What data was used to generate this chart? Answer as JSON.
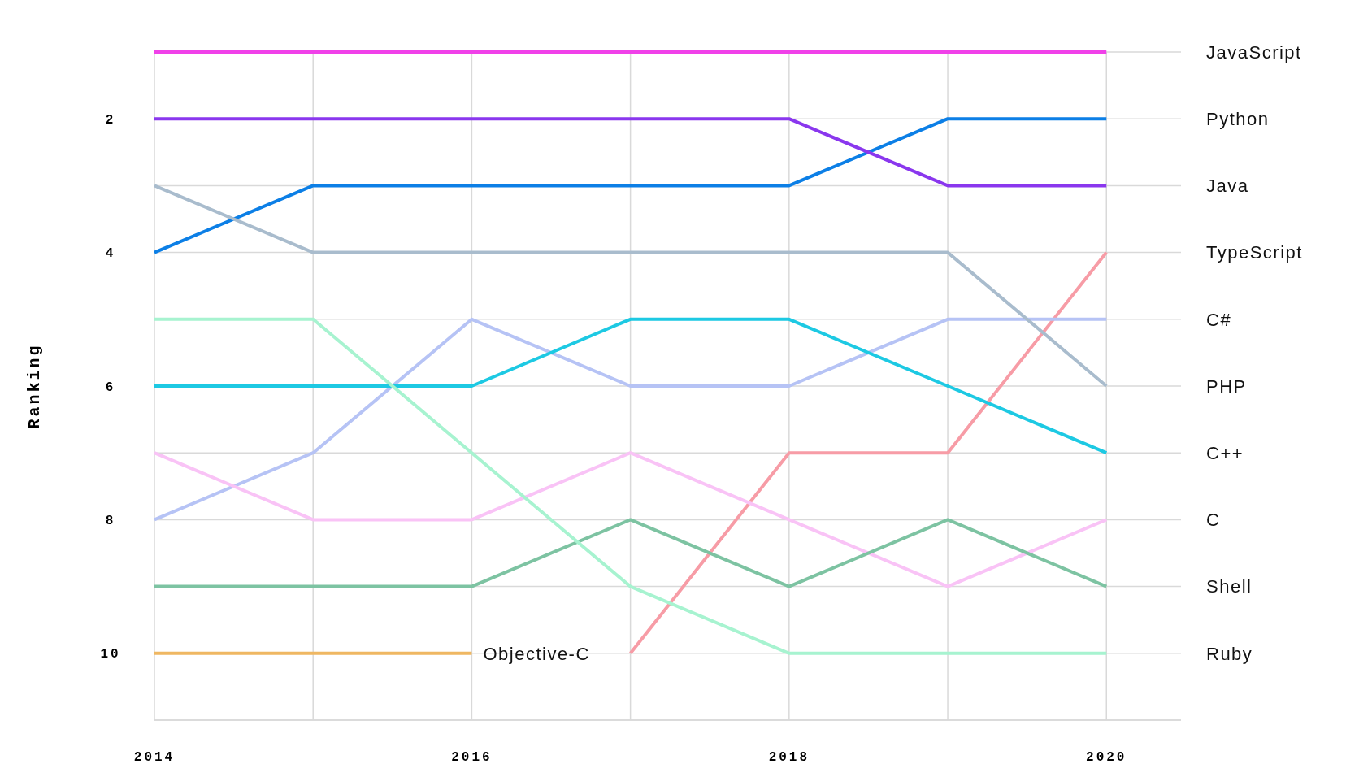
{
  "chart_data": {
    "type": "line",
    "ylabel": "Ranking",
    "x": [
      2014,
      2015,
      2016,
      2017,
      2018,
      2019,
      2020
    ],
    "xlim": [
      2014,
      2020.47
    ],
    "xticks": [
      2014,
      {
        "value": 2015,
        "label": null
      },
      2016,
      {
        "value": 2017,
        "label": null
      },
      2018,
      {
        "value": 2019,
        "label": null
      },
      2020
    ],
    "ylim": [
      11,
      1
    ],
    "yticks": [
      {
        "value": 1,
        "label": null
      },
      2,
      {
        "value": 3,
        "label": null
      },
      4,
      {
        "value": 5,
        "label": null
      },
      6,
      {
        "value": 7,
        "label": null
      },
      8,
      {
        "value": 9,
        "label": null
      },
      10,
      {
        "value": 11,
        "label": null
      }
    ],
    "grid": true,
    "marker": "none",
    "line_style": "solid",
    "series": [
      {
        "name": "JavaScript",
        "color": "#f041e9",
        "values": [
          1,
          1,
          1,
          1,
          1,
          1,
          1
        ]
      },
      {
        "name": "Python",
        "color": "#0c7fe6",
        "values": [
          4,
          3,
          3,
          3,
          3,
          2,
          2
        ]
      },
      {
        "name": "Java",
        "color": "#8a37ee",
        "values": [
          2,
          2,
          2,
          2,
          2,
          3,
          3
        ]
      },
      {
        "name": "TypeScript",
        "color": "#f79ca6",
        "values": [
          null,
          null,
          null,
          10,
          7,
          7,
          4
        ]
      },
      {
        "name": "C#",
        "color": "#b6c3f5",
        "values": [
          8,
          7,
          5,
          6,
          6,
          5,
          5
        ]
      },
      {
        "name": "PHP",
        "color": "#a9bccd",
        "values": [
          3,
          4,
          4,
          4,
          4,
          4,
          6
        ]
      },
      {
        "name": "C++",
        "color": "#1dc9e3",
        "values": [
          6,
          6,
          6,
          5,
          5,
          6,
          7
        ]
      },
      {
        "name": "C",
        "color": "#f9c3f6",
        "values": [
          7,
          8,
          8,
          7,
          8,
          9,
          8
        ]
      },
      {
        "name": "Shell",
        "color": "#7dc3a2",
        "values": [
          9,
          9,
          9,
          8,
          9,
          8,
          9
        ]
      },
      {
        "name": "Ruby",
        "color": "#a7f3d0",
        "values": [
          5,
          5,
          7,
          9,
          10,
          10,
          10
        ]
      },
      {
        "name": "Objective-C",
        "color": "#efb762",
        "values": [
          10,
          10,
          10,
          null,
          null,
          null,
          null
        ]
      }
    ]
  }
}
